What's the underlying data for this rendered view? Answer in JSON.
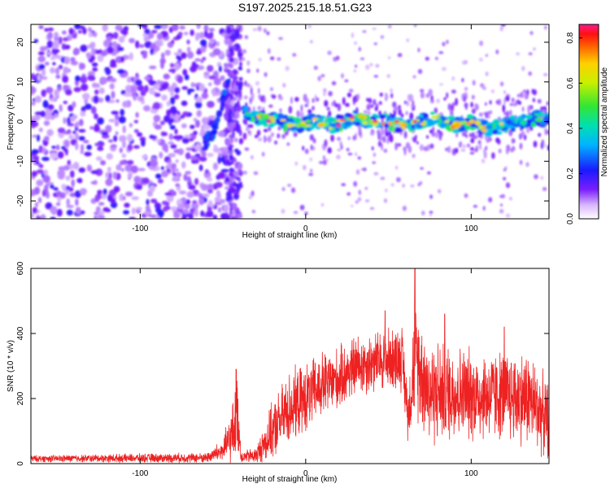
{
  "title": "S197.2025.215.18.51.G23",
  "chart_data": [
    {
      "type": "heatmap",
      "xlabel": "Height of straight line (km)",
      "ylabel": "Frequency (Hz)",
      "xlim": [
        -166,
        147
      ],
      "ylim": [
        -24.5,
        24.5
      ],
      "xticks": [
        -100,
        0,
        100
      ],
      "yticks": [
        -20,
        -10,
        0,
        10,
        20
      ],
      "colorbar": {
        "label": "Normalized spectral amplitude",
        "range": [
          0.0,
          0.86
        ],
        "ticks": [
          "0.0",
          "0.2",
          "0.4",
          "0.6",
          "0.8"
        ],
        "colormap": "rainbow (white, violet, blue, cyan, green, yellow, orange, red, magenta)"
      },
      "features": [
        {
          "name": "noise field",
          "x_range": [
            -166,
            -40
          ],
          "freq_range": [
            -24,
            24
          ],
          "level": "0.1-0.25"
        },
        {
          "name": "vertical stripe",
          "x_range": [
            -48,
            -39
          ],
          "freq_range": [
            -24,
            24
          ],
          "level": "0.1-0.2"
        },
        {
          "name": "rising segment",
          "points": [
            [
              -62,
              -6
            ],
            [
              -55,
              -2
            ],
            [
              -50,
              5
            ],
            [
              -47,
              9
            ]
          ],
          "level": "0.15-0.3"
        },
        {
          "name": "main band",
          "points": [
            [
              -37,
              3
            ],
            [
              -28,
              1
            ],
            [
              -15,
              0
            ],
            [
              -5,
              -1
            ],
            [
              5,
              0
            ],
            [
              15,
              -1
            ],
            [
              25,
              0
            ],
            [
              30,
              1
            ],
            [
              40,
              0
            ],
            [
              50,
              0
            ],
            [
              60,
              -1
            ],
            [
              70,
              0
            ],
            [
              80,
              1
            ],
            [
              90,
              -1
            ],
            [
              100,
              0
            ],
            [
              110,
              -2
            ],
            [
              120,
              -1
            ],
            [
              130,
              0
            ],
            [
              140,
              1
            ],
            [
              147,
              0
            ]
          ],
          "level": "0.3-0.86"
        }
      ]
    },
    {
      "type": "line",
      "xlabel": "Height of straight line (km)",
      "ylabel": "SNR (10 * v/v)",
      "xlim": [
        -166,
        147
      ],
      "ylim": [
        0,
        600
      ],
      "xticks": [
        -100,
        0,
        100
      ],
      "yticks": [
        0,
        200,
        400,
        600
      ],
      "color": "#ee2222",
      "envelope": [
        {
          "x": -166,
          "base": 15,
          "amp": 12
        },
        {
          "x": -60,
          "base": 18,
          "amp": 18
        },
        {
          "x": -50,
          "base": 40,
          "amp": 40
        },
        {
          "x": -45,
          "base": 80,
          "amp": 100
        },
        {
          "x": -41,
          "base": 150,
          "amp": 140
        },
        {
          "x": -39,
          "base": 20,
          "amp": 20
        },
        {
          "x": -30,
          "base": 25,
          "amp": 30
        },
        {
          "x": -20,
          "base": 100,
          "amp": 100
        },
        {
          "x": -10,
          "base": 170,
          "amp": 130
        },
        {
          "x": 0,
          "base": 200,
          "amp": 120
        },
        {
          "x": 10,
          "base": 240,
          "amp": 120
        },
        {
          "x": 20,
          "base": 260,
          "amp": 110
        },
        {
          "x": 30,
          "base": 300,
          "amp": 110
        },
        {
          "x": 40,
          "base": 310,
          "amp": 110
        },
        {
          "x": 50,
          "base": 320,
          "amp": 110
        },
        {
          "x": 58,
          "base": 330,
          "amp": 120
        },
        {
          "x": 62,
          "base": 150,
          "amp": 100
        },
        {
          "x": 66,
          "base": 330,
          "amp": 200
        },
        {
          "x": 75,
          "base": 220,
          "amp": 190
        },
        {
          "x": 90,
          "base": 220,
          "amp": 170
        },
        {
          "x": 105,
          "base": 210,
          "amp": 160
        },
        {
          "x": 120,
          "base": 210,
          "amp": 160
        },
        {
          "x": 135,
          "base": 200,
          "amp": 170
        },
        {
          "x": 147,
          "base": 130,
          "amp": 130
        }
      ],
      "peaks": [
        {
          "x": -42,
          "y": 290
        },
        {
          "x": 48,
          "y": 470
        },
        {
          "x": 66,
          "y": 600
        },
        {
          "x": 84,
          "y": 460
        },
        {
          "x": 120,
          "y": 420
        }
      ]
    }
  ]
}
